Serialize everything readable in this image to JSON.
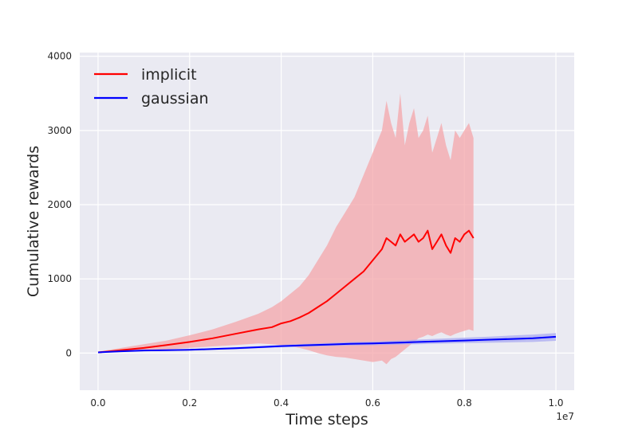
{
  "chart_data": {
    "type": "line",
    "title": "",
    "xlabel": "Time steps",
    "ylabel": "Cumulative rewards",
    "x_offset_label": "1e7",
    "xlim": [
      -0.04,
      1.04
    ],
    "ylim": [
      -500,
      4050
    ],
    "x_ticks": [
      0.0,
      0.2,
      0.4,
      0.6,
      0.8,
      1.0
    ],
    "x_tick_labels": [
      "0.0",
      "0.2",
      "0.4",
      "0.6",
      "0.8",
      "1.0"
    ],
    "y_ticks": [
      0,
      1000,
      2000,
      3000,
      4000
    ],
    "y_tick_labels": [
      "0",
      "1000",
      "2000",
      "3000",
      "4000"
    ],
    "grid": true,
    "legend_position": "top-left",
    "series": [
      {
        "name": "implicit",
        "color": "#ff0000",
        "band_color": "#f4a6a9",
        "x": [
          0.0,
          0.02,
          0.05,
          0.1,
          0.15,
          0.2,
          0.25,
          0.3,
          0.35,
          0.38,
          0.4,
          0.42,
          0.44,
          0.46,
          0.48,
          0.5,
          0.52,
          0.54,
          0.56,
          0.58,
          0.6,
          0.62,
          0.63,
          0.64,
          0.65,
          0.66,
          0.67,
          0.68,
          0.69,
          0.7,
          0.71,
          0.72,
          0.73,
          0.74,
          0.75,
          0.76,
          0.77,
          0.78,
          0.79,
          0.8,
          0.81,
          0.82
        ],
        "y": [
          10,
          20,
          40,
          70,
          110,
          150,
          200,
          260,
          320,
          350,
          400,
          430,
          480,
          540,
          620,
          700,
          800,
          900,
          1000,
          1100,
          1250,
          1400,
          1550,
          1500,
          1450,
          1600,
          1500,
          1550,
          1600,
          1500,
          1550,
          1650,
          1400,
          1500,
          1600,
          1450,
          1350,
          1550,
          1500,
          1600,
          1650,
          1550
        ],
        "lower": [
          0,
          5,
          15,
          30,
          50,
          70,
          90,
          110,
          130,
          120,
          110,
          90,
          70,
          40,
          0,
          -30,
          -50,
          -60,
          -80,
          -100,
          -120,
          -100,
          -150,
          -80,
          -50,
          0,
          50,
          100,
          150,
          200,
          220,
          250,
          230,
          260,
          280,
          250,
          230,
          260,
          280,
          300,
          320,
          300
        ],
        "upper": [
          20,
          40,
          70,
          120,
          170,
          240,
          320,
          420,
          530,
          620,
          700,
          800,
          900,
          1050,
          1250,
          1450,
          1700,
          1900,
          2100,
          2400,
          2700,
          3000,
          3400,
          3100,
          2900,
          3500,
          2800,
          3100,
          3300,
          2900,
          3000,
          3200,
          2700,
          2900,
          3100,
          2800,
          2600,
          3000,
          2900,
          3000,
          3100,
          2900
        ]
      },
      {
        "name": "gaussian",
        "color": "#0000ff",
        "band_color": "#a9a9f2",
        "x": [
          0.0,
          0.05,
          0.1,
          0.15,
          0.2,
          0.25,
          0.3,
          0.35,
          0.4,
          0.45,
          0.5,
          0.55,
          0.6,
          0.65,
          0.7,
          0.75,
          0.8,
          0.85,
          0.9,
          0.95,
          1.0
        ],
        "y": [
          10,
          25,
          35,
          40,
          45,
          55,
          65,
          80,
          95,
          105,
          115,
          125,
          130,
          140,
          150,
          160,
          170,
          180,
          190,
          200,
          220
        ],
        "lower": [
          5,
          18,
          28,
          32,
          36,
          44,
          52,
          65,
          78,
          86,
          94,
          102,
          106,
          114,
          120,
          128,
          135,
          140,
          145,
          150,
          165
        ],
        "upper": [
          15,
          32,
          42,
          48,
          54,
          66,
          78,
          95,
          112,
          124,
          136,
          148,
          156,
          168,
          182,
          194,
          208,
          220,
          236,
          250,
          270
        ]
      }
    ]
  }
}
